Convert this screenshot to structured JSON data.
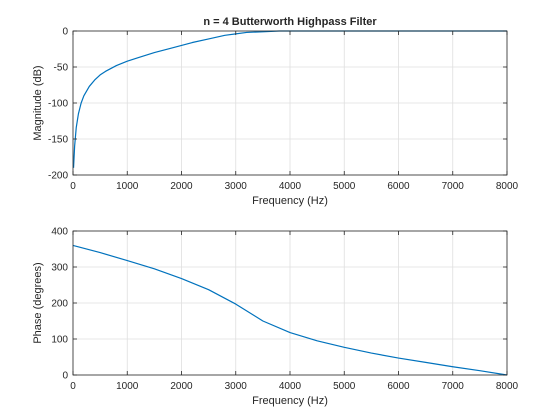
{
  "chart_data": [
    {
      "type": "line",
      "title": "n = 4 Butterworth Highpass Filter",
      "xlabel": "Frequency (Hz)",
      "ylabel": "Magnitude (dB)",
      "xlim": [
        0,
        8000
      ],
      "ylim": [
        -200,
        0
      ],
      "xticks": [
        "0",
        "1000",
        "2000",
        "3000",
        "4000",
        "5000",
        "6000",
        "7000",
        "8000"
      ],
      "yticks": [
        "-200",
        "-150",
        "-100",
        "-50",
        "0"
      ],
      "grid": true,
      "line_color": "#0072bd",
      "series": [
        {
          "x": [
            10,
            30,
            60,
            100,
            150,
            200,
            300,
            400,
            500,
            600,
            800,
            1000,
            1200,
            1500,
            1800,
            2000,
            2200,
            2500,
            2800,
            3000,
            3200,
            3500,
            3800,
            4000,
            4500,
            5000,
            6000,
            7000,
            8000
          ],
          "values": [
            -190,
            -160,
            -134,
            -115,
            -100,
            -90,
            -77,
            -68,
            -61,
            -56,
            -48,
            -42,
            -37,
            -30,
            -24,
            -20,
            -16,
            -11,
            -6,
            -4,
            -2,
            -1,
            0,
            0,
            0,
            0,
            0,
            0,
            0
          ]
        }
      ]
    },
    {
      "type": "line",
      "title": "",
      "xlabel": "Frequency (Hz)",
      "ylabel": "Phase (degrees)",
      "xlim": [
        0,
        8000
      ],
      "ylim": [
        0,
        400
      ],
      "xticks": [
        "0",
        "1000",
        "2000",
        "3000",
        "4000",
        "5000",
        "6000",
        "7000",
        "8000"
      ],
      "yticks": [
        "0",
        "100",
        "200",
        "300",
        "400"
      ],
      "grid": true,
      "line_color": "#0072bd",
      "series": [
        {
          "x": [
            0,
            500,
            1000,
            1500,
            2000,
            2500,
            3000,
            3500,
            4000,
            4500,
            5000,
            5500,
            6000,
            6500,
            7000,
            7500,
            8000
          ],
          "values": [
            360,
            340,
            318,
            295,
            268,
            237,
            197,
            150,
            118,
            95,
            77,
            61,
            47,
            35,
            23,
            12,
            0
          ]
        }
      ]
    }
  ]
}
